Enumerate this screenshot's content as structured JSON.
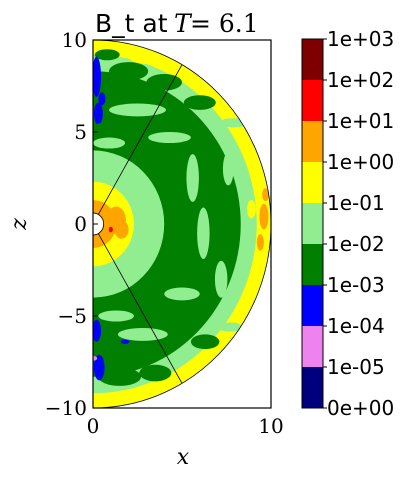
{
  "chart_data": {
    "type": "heatmap",
    "title": {
      "text": "B_t at ",
      "math_var": "T",
      "math_rest": " = 6.1"
    },
    "xlabel": "x",
    "ylabel": "z",
    "xlim": [
      0,
      10
    ],
    "ylim": [
      -10,
      10
    ],
    "x_ticks": [
      {
        "value": 0,
        "label": "0"
      },
      {
        "value": 10,
        "label": "10"
      }
    ],
    "y_ticks": [
      {
        "value": 10,
        "label": "10"
      },
      {
        "value": 5,
        "label": "5"
      },
      {
        "value": 0,
        "label": "0"
      },
      {
        "value": -5,
        "label": "−5"
      },
      {
        "value": -10,
        "label": "−10"
      }
    ],
    "domain": {
      "shape": "half-annulus",
      "inner_radius": 0.6,
      "outer_radius": 10
    },
    "wedge_lines_deg": [
      60,
      -60
    ],
    "colorbar": {
      "scale": "log",
      "levels": [
        "0e+00",
        "1e-05",
        "1e-04",
        "1e-03",
        "1e-02",
        "1e-01",
        "1e+00",
        "1e+01",
        "1e+02",
        "1e+03"
      ],
      "colors": [
        "#00007f",
        "#ee82ee",
        "#0000ff",
        "#007f00",
        "#90ee90",
        "#ffff00",
        "#ffa500",
        "#ff0000",
        "#7f0000"
      ]
    },
    "regions": [
      {
        "band": "1e-01 to 1e+00",
        "color": "#ffff00",
        "r_min": 9.0,
        "r_max": 10.0,
        "note": "outer rim"
      },
      {
        "band": "1e-02 to 1e-01",
        "color": "#90ee90",
        "r_min": 7.9,
        "r_max": 9.2
      },
      {
        "band": "1e-03 to 1e-02",
        "color": "#007f00",
        "r_min": 3.7,
        "r_max": 8.3,
        "note": "bulk"
      },
      {
        "band": "1e-02 to 1e-01",
        "color": "#90ee90",
        "r_min": 2.0,
        "r_max": 4.0
      },
      {
        "band": "1e-01 to 1e+00",
        "color": "#ffff00",
        "r_min": 1.0,
        "r_max": 2.3
      },
      {
        "band": "1e+00 to 1e+01",
        "color": "#ffa500",
        "r_min": 0.6,
        "r_max": 1.3,
        "note": "near inner boundary"
      },
      {
        "band": "1e-04 to 1e-03",
        "color": "#0000ff",
        "location": "near axis, |z| > 5",
        "note": "small patches"
      },
      {
        "band": "1e-05 to 1e-04",
        "color": "#ee82ee",
        "location": "x~0.1, z~-7.3",
        "note": "tiny patch"
      }
    ]
  }
}
